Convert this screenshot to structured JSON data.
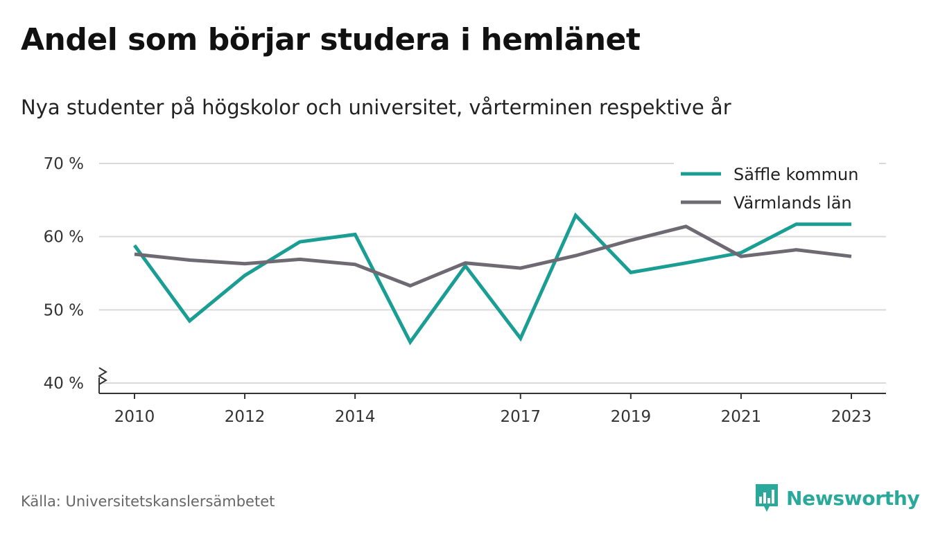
{
  "title": "Andel som börjar studera i hemlänet",
  "subtitle": "Nya studenter på högskolor och universitet, vårterminen respektive år",
  "source": "Källa: Universitetskanslersämbetet",
  "brand": "Newsworthy",
  "colors": {
    "saffle": "#1a9e93",
    "varmland": "#6d6a73",
    "brand": "#2aa89a"
  },
  "chart_data": {
    "type": "line",
    "x": [
      2010,
      2011,
      2012,
      2013,
      2014,
      2015,
      2016,
      2017,
      2018,
      2019,
      2020,
      2021,
      2022,
      2023
    ],
    "x_tick_values": [
      2010,
      2012,
      2014,
      2017,
      2019,
      2021,
      2023
    ],
    "x_tick_labels": [
      "2010",
      "2012",
      "2014",
      "2017",
      "2019",
      "2021",
      "2023"
    ],
    "y_ticks": [
      40,
      50,
      60,
      70
    ],
    "y_tick_labels": [
      "40 %",
      "50 %",
      "60 %",
      "70 %"
    ],
    "ylim": [
      40,
      70
    ],
    "y_axis_break": true,
    "grid": true,
    "legend_position": "top-right",
    "series": [
      {
        "name": "Säffle kommun",
        "color": "#1a9e93",
        "values": [
          58.8,
          48.5,
          54.7,
          59.3,
          60.3,
          45.6,
          56.0,
          46.1,
          62.9,
          55.1,
          56.4,
          57.8,
          61.7,
          61.7
        ]
      },
      {
        "name": "Värmlands län",
        "color": "#6d6a73",
        "values": [
          57.6,
          56.8,
          56.3,
          56.9,
          56.2,
          53.3,
          56.4,
          55.7,
          57.4,
          59.5,
          61.4,
          57.3,
          58.2,
          57.3
        ]
      }
    ]
  }
}
